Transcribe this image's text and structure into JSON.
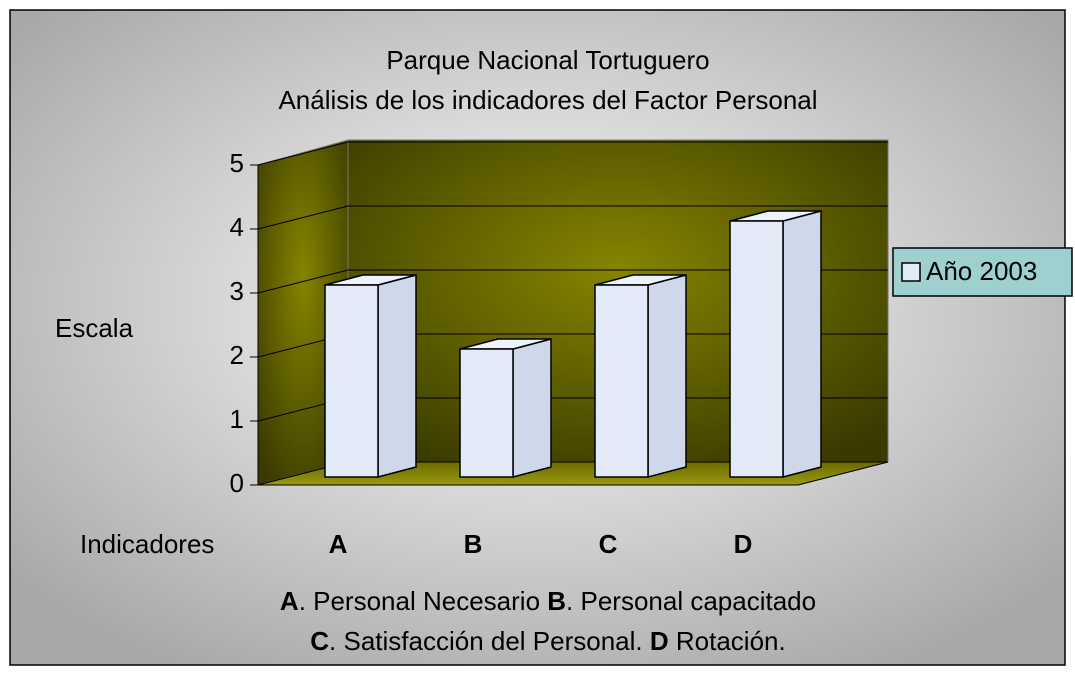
{
  "chart_data": {
    "type": "bar3d",
    "title": [
      "Parque Nacional Tortuguero",
      "Análisis de los indicadores del Factor Personal"
    ],
    "y_label": "Escala",
    "x_label": "Indicadores",
    "categories": [
      "A",
      "B",
      "C",
      "D"
    ],
    "series": [
      {
        "name": "Año 2003",
        "color": "#e4ebf8",
        "values": [
          3,
          2,
          3,
          4
        ]
      }
    ],
    "ylim": [
      0,
      5
    ],
    "yticks": [
      0,
      1,
      2,
      3,
      4,
      5
    ],
    "grid": true,
    "legend": "right",
    "notes": [
      [
        "A",
        ". Personal Necesario ",
        "B",
        ". Personal capacitado"
      ],
      [
        "C",
        ". Satisfacción del Personal. ",
        "D",
        " Rotación."
      ]
    ]
  }
}
